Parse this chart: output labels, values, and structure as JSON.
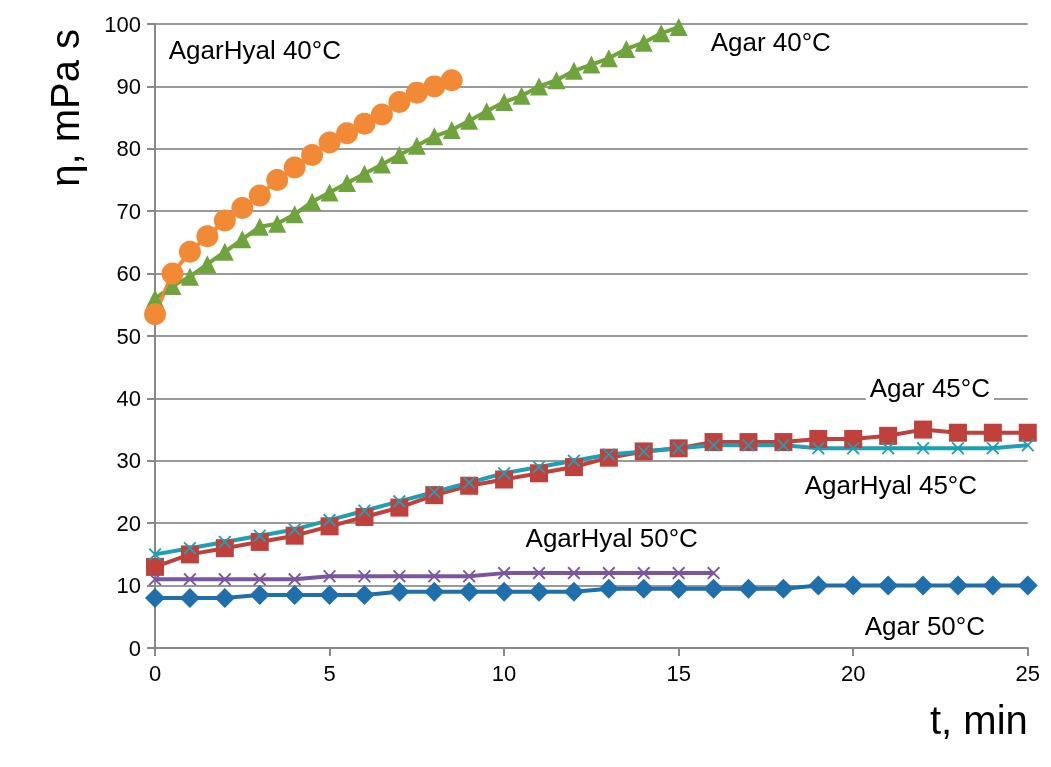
{
  "chart_data": {
    "type": "line",
    "xlabel": "t, min",
    "ylabel": "η, mPa s",
    "xlim": [
      0,
      25
    ],
    "xticks": [
      0,
      5,
      10,
      15,
      20,
      25
    ],
    "ylim": [
      0,
      100
    ],
    "yticks": [
      0,
      10,
      20,
      30,
      40,
      50,
      60,
      70,
      80,
      90,
      100
    ],
    "grid": "y",
    "legend": false,
    "series": [
      {
        "name": "Agar 50°C",
        "color": "#1f6fad",
        "marker": "diamond",
        "x": [
          0,
          1,
          2,
          3,
          4,
          5,
          6,
          7,
          8,
          9,
          10,
          11,
          12,
          13,
          14,
          15,
          16,
          17,
          18,
          19,
          20,
          21,
          22,
          23,
          24,
          25
        ],
        "values": [
          8,
          8,
          8,
          8.5,
          8.5,
          8.5,
          8.5,
          9,
          9,
          9,
          9,
          9,
          9,
          9.5,
          9.5,
          9.5,
          9.5,
          9.5,
          9.5,
          10,
          10,
          10,
          10,
          10,
          10,
          10
        ]
      },
      {
        "name": "Agar 45°C",
        "color": "#c0403c",
        "marker": "square",
        "x": [
          0,
          1,
          2,
          3,
          4,
          5,
          6,
          7,
          8,
          9,
          10,
          11,
          12,
          13,
          14,
          15,
          16,
          17,
          18,
          19,
          20,
          21,
          22,
          23,
          24,
          25
        ],
        "values": [
          13,
          15,
          16,
          17,
          18,
          19.5,
          21,
          22.5,
          24.5,
          26,
          27,
          28,
          29,
          30.5,
          31.5,
          32,
          33,
          33,
          33,
          33.5,
          33.5,
          34,
          35,
          34.5,
          34.5,
          34.5
        ]
      },
      {
        "name": "Agar 40°C",
        "color": "#6fa33c",
        "marker": "triangle",
        "x": [
          0,
          0.5,
          1,
          1.5,
          2,
          2.5,
          3,
          3.5,
          4,
          4.5,
          5,
          5.5,
          6,
          6.5,
          7,
          7.5,
          8,
          8.5,
          9,
          9.5,
          10,
          10.5,
          11,
          11.5,
          12,
          12.5,
          13,
          13.5,
          14,
          14.5,
          15
        ],
        "values": [
          56,
          58,
          59.5,
          61.5,
          63.5,
          65.5,
          67.5,
          68,
          69.5,
          71.5,
          73,
          74.5,
          76,
          77.5,
          79,
          80.5,
          82,
          83,
          84.5,
          86,
          87.5,
          88.5,
          90,
          91,
          92.5,
          93.5,
          94.5,
          96,
          97,
          98.5,
          99.5
        ]
      },
      {
        "name": "AgarHyal 50°C",
        "color": "#7b56a0",
        "marker": "cross",
        "x": [
          0,
          1,
          2,
          3,
          4,
          5,
          6,
          7,
          8,
          9,
          10,
          11,
          12,
          13,
          14,
          15,
          16
        ],
        "values": [
          11,
          11,
          11,
          11,
          11,
          11.5,
          11.5,
          11.5,
          11.5,
          11.5,
          12,
          12,
          12,
          12,
          12,
          12,
          12
        ]
      },
      {
        "name": "AgarHyal 45°C",
        "color": "#1ea0b4",
        "marker": "cross",
        "x": [
          0,
          1,
          2,
          3,
          4,
          5,
          6,
          7,
          8,
          9,
          10,
          11,
          12,
          13,
          14,
          15,
          16,
          17,
          18,
          19,
          20,
          21,
          22,
          23,
          24,
          25
        ],
        "values": [
          15,
          16,
          17,
          18,
          19,
          20.5,
          22,
          23.5,
          25,
          26.5,
          28,
          29,
          30,
          31,
          31.5,
          32,
          32.5,
          32.5,
          32.5,
          32,
          32,
          32,
          32,
          32,
          32,
          32.5
        ]
      },
      {
        "name": "AgarHyal 40°C",
        "color": "#f28a35",
        "marker": "circle",
        "x": [
          0,
          0.5,
          1,
          1.5,
          2,
          2.5,
          3,
          3.5,
          4,
          4.5,
          5,
          5.5,
          6,
          6.5,
          7,
          7.5,
          8,
          8.5
        ],
        "values": [
          53.5,
          60,
          63.5,
          66,
          68.5,
          70.5,
          72.5,
          75,
          77,
          79,
          81,
          82.5,
          84,
          85.5,
          87.5,
          89,
          90,
          91
        ]
      }
    ]
  }
}
